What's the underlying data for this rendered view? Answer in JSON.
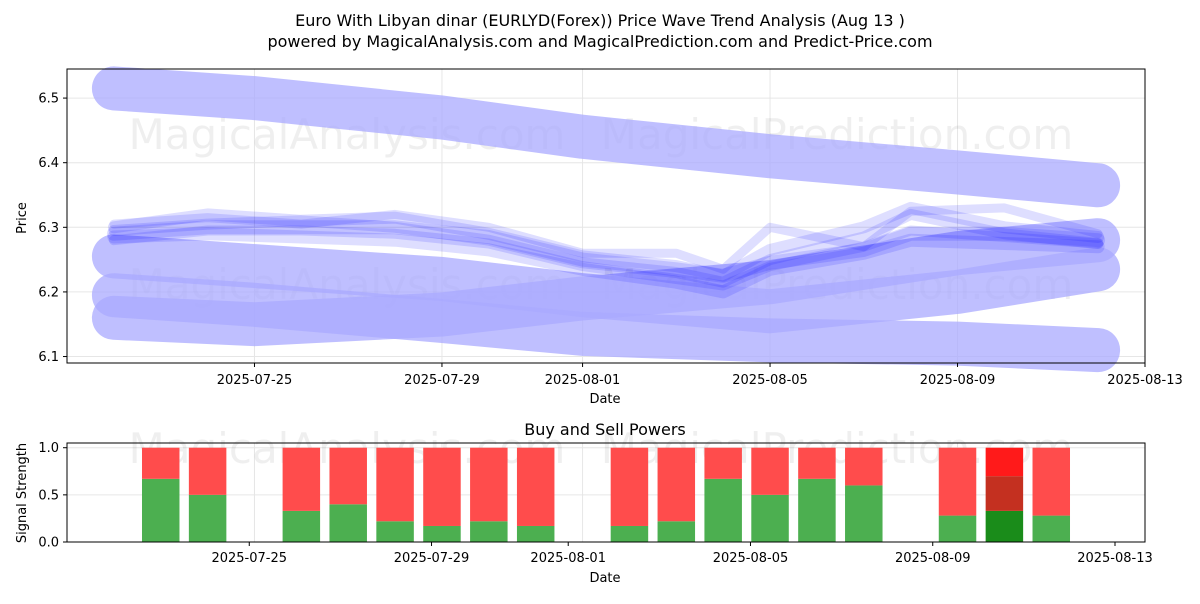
{
  "title": {
    "line1": "Euro With Libyan dinar (EURLYD(Forex)) Price Wave Trend Analysis (Aug 13 )",
    "line2": "powered by MagicalAnalysis.com and MagicalPrediction.com and Predict-Price.com"
  },
  "watermarks": [
    "MagicalAnalysis.com",
    "MagicalPrediction.com"
  ],
  "colors": {
    "wave": "#0000ff",
    "band": "#aaaaff",
    "buy": "#4caf50",
    "sell": "#ff4c4c",
    "buy_dark": "#1a8c1a",
    "sell_dark": "#c43020",
    "sell_bright": "#ff1a1a"
  },
  "chart_data": [
    {
      "type": "line",
      "title": "",
      "xlabel": "Date",
      "ylabel": "Price",
      "x_ticks": [
        "2025-07-25",
        "2025-07-29",
        "2025-08-01",
        "2025-08-05",
        "2025-08-09",
        "2025-08-13"
      ],
      "y_ticks": [
        "6.1",
        "6.2",
        "6.3",
        "6.4",
        "6.5"
      ],
      "xlim": [
        "2025-07-21",
        "2025-08-13"
      ],
      "ylim": [
        6.09,
        6.545
      ],
      "grid": true,
      "bands": [
        {
          "name": "upper-band",
          "x": [
            "2025-07-22",
            "2025-07-25",
            "2025-07-29",
            "2025-08-01",
            "2025-08-05",
            "2025-08-09",
            "2025-08-12"
          ],
          "y": [
            6.515,
            6.5,
            6.47,
            6.44,
            6.41,
            6.385,
            6.365
          ]
        },
        {
          "name": "middle-band",
          "x": [
            "2025-07-22",
            "2025-07-25",
            "2025-07-29",
            "2025-08-01",
            "2025-08-05",
            "2025-08-09",
            "2025-08-12"
          ],
          "y": [
            6.255,
            6.24,
            6.22,
            6.195,
            6.17,
            6.2,
            6.235
          ]
        },
        {
          "name": "lower-band",
          "x": [
            "2025-07-22",
            "2025-07-25",
            "2025-07-29",
            "2025-08-01",
            "2025-08-05",
            "2025-08-09",
            "2025-08-12"
          ],
          "y": [
            6.16,
            6.15,
            6.165,
            6.19,
            6.215,
            6.26,
            6.28
          ]
        },
        {
          "name": "bottom-band",
          "x": [
            "2025-07-22",
            "2025-07-25",
            "2025-07-29",
            "2025-08-01",
            "2025-08-05",
            "2025-08-09",
            "2025-08-12"
          ],
          "y": [
            6.195,
            6.18,
            6.155,
            6.135,
            6.125,
            6.12,
            6.11
          ]
        }
      ],
      "series": [
        {
          "x": [
            "2025-07-22",
            "2025-07-24",
            "2025-07-26",
            "2025-07-28",
            "2025-07-30",
            "2025-08-01",
            "2025-08-03",
            "2025-08-04",
            "2025-08-05",
            "2025-08-07",
            "2025-08-08",
            "2025-08-10",
            "2025-08-12"
          ],
          "y": [
            6.29,
            6.3,
            6.3,
            6.3,
            6.285,
            6.25,
            6.235,
            6.225,
            6.245,
            6.265,
            6.29,
            6.29,
            6.28
          ]
        },
        {
          "x": [
            "2025-07-22",
            "2025-07-24",
            "2025-07-26",
            "2025-07-28",
            "2025-07-30",
            "2025-08-01",
            "2025-08-03",
            "2025-08-04",
            "2025-08-05",
            "2025-08-07",
            "2025-08-08",
            "2025-08-10",
            "2025-08-12"
          ],
          "y": [
            6.285,
            6.29,
            6.285,
            6.28,
            6.265,
            6.235,
            6.215,
            6.2,
            6.235,
            6.26,
            6.28,
            6.275,
            6.27
          ]
        },
        {
          "x": [
            "2025-07-22",
            "2025-07-24",
            "2025-07-26",
            "2025-07-28",
            "2025-07-30",
            "2025-08-01",
            "2025-08-03",
            "2025-08-04",
            "2025-08-05",
            "2025-08-07",
            "2025-08-08",
            "2025-08-10",
            "2025-08-12"
          ],
          "y": [
            6.3,
            6.32,
            6.31,
            6.315,
            6.29,
            6.255,
            6.24,
            6.225,
            6.265,
            6.3,
            6.33,
            6.3,
            6.285
          ]
        },
        {
          "x": [
            "2025-07-22",
            "2025-07-24",
            "2025-07-26",
            "2025-07-28",
            "2025-07-30",
            "2025-08-01",
            "2025-08-03",
            "2025-08-04",
            "2025-08-05",
            "2025-08-07",
            "2025-08-08",
            "2025-08-10",
            "2025-08-12"
          ],
          "y": [
            6.295,
            6.305,
            6.31,
            6.3,
            6.28,
            6.245,
            6.23,
            6.215,
            6.25,
            6.285,
            6.32,
            6.29,
            6.275
          ]
        },
        {
          "x": [
            "2025-07-22",
            "2025-07-24",
            "2025-07-26",
            "2025-07-28",
            "2025-07-30",
            "2025-08-01",
            "2025-08-03",
            "2025-08-04",
            "2025-08-05",
            "2025-08-07",
            "2025-08-08",
            "2025-08-10",
            "2025-08-12"
          ],
          "y": [
            6.28,
            6.295,
            6.295,
            6.29,
            6.275,
            6.24,
            6.22,
            6.21,
            6.24,
            6.27,
            6.295,
            6.285,
            6.275
          ]
        },
        {
          "x": [
            "2025-07-22",
            "2025-07-24",
            "2025-07-26",
            "2025-07-28",
            "2025-07-30",
            "2025-08-01",
            "2025-08-03",
            "2025-08-04",
            "2025-08-05",
            "2025-08-07",
            "2025-08-08",
            "2025-08-10",
            "2025-08-12"
          ],
          "y": [
            6.305,
            6.315,
            6.305,
            6.32,
            6.3,
            6.26,
            6.26,
            6.235,
            6.3,
            6.27,
            6.325,
            6.33,
            6.29
          ]
        }
      ]
    },
    {
      "type": "bar",
      "title": "Buy and Sell Powers",
      "xlabel": "Date",
      "ylabel": "Signal Strength",
      "x_ticks": [
        "2025-07-25",
        "2025-07-29",
        "2025-08-01",
        "2025-08-05",
        "2025-08-09",
        "2025-08-13"
      ],
      "y_ticks": [
        "0.0",
        "0.5",
        "1.0"
      ],
      "xlim": [
        "2025-07-21",
        "2025-08-13"
      ],
      "ylim": [
        0,
        1.05
      ],
      "grid": true,
      "categories": [
        "2025-07-23",
        "2025-07-24",
        "2025-07-26",
        "2025-07-27",
        "2025-07-28",
        "2025-07-29",
        "2025-07-30",
        "2025-07-31",
        "2025-08-02",
        "2025-08-03",
        "2025-08-04",
        "2025-08-05",
        "2025-08-06",
        "2025-08-07",
        "2025-08-09",
        "2025-08-10",
        "2025-08-11"
      ],
      "series": [
        {
          "name": "Buy",
          "values": [
            0.67,
            0.5,
            0.33,
            0.4,
            0.22,
            0.17,
            0.22,
            0.17,
            0.17,
            0.22,
            0.67,
            0.5,
            0.67,
            0.6,
            0.28,
            0.33,
            0.28
          ]
        },
        {
          "name": "Sell",
          "values": [
            0.33,
            0.5,
            0.67,
            0.6,
            0.78,
            0.83,
            0.78,
            0.83,
            0.83,
            0.78,
            0.33,
            0.5,
            0.33,
            0.4,
            0.72,
            0.67,
            0.72
          ]
        }
      ],
      "highlight_category": "2025-08-10"
    }
  ]
}
